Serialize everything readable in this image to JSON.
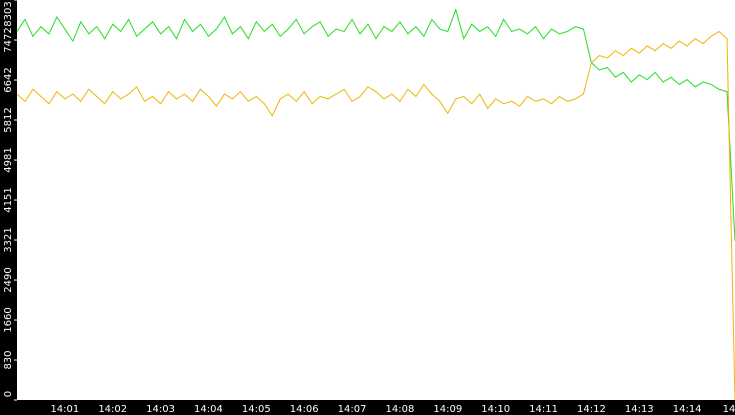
{
  "chart_data": {
    "type": "line",
    "categories": [
      null,
      null,
      null,
      null,
      null,
      null,
      "14:01",
      null,
      null,
      null,
      null,
      null,
      "14:02",
      null,
      null,
      null,
      null,
      null,
      "14:03",
      null,
      null,
      null,
      null,
      null,
      "14:04",
      null,
      null,
      null,
      null,
      null,
      "14:05",
      null,
      null,
      null,
      null,
      null,
      "14:06",
      null,
      null,
      null,
      null,
      null,
      "14:07",
      null,
      null,
      null,
      null,
      null,
      "14:08",
      null,
      null,
      null,
      null,
      null,
      "14:09",
      null,
      null,
      null,
      null,
      null,
      "14:10",
      null,
      null,
      null,
      null,
      null,
      "14:11",
      null,
      null,
      null,
      null,
      null,
      "14:12",
      null,
      null,
      null,
      null,
      null,
      "14:13",
      null,
      null,
      null,
      null,
      null,
      "14:14",
      null,
      null,
      null,
      null,
      null,
      "14"
    ],
    "series": [
      {
        "color": "#22dd22",
        "values": [
          7650,
          7900,
          7550,
          7750,
          7600,
          7950,
          7700,
          7450,
          7850,
          7600,
          7750,
          7500,
          7800,
          7650,
          7900,
          7550,
          7700,
          7850,
          7600,
          7750,
          7500,
          7900,
          7650,
          7800,
          7550,
          7700,
          7950,
          7600,
          7750,
          7500,
          7850,
          7650,
          7800,
          7550,
          7700,
          7900,
          7600,
          7750,
          7850,
          7550,
          7700,
          7650,
          7900,
          7600,
          7800,
          7500,
          7750,
          7650,
          7850,
          7600,
          7750,
          7550,
          7900,
          7700,
          7650,
          8100,
          7500,
          7800,
          7650,
          7750,
          7550,
          7900,
          7650,
          7700,
          7600,
          7750,
          7500,
          7700,
          7600,
          7650,
          7750,
          7700,
          7000,
          6850,
          6900,
          6700,
          6800,
          6600,
          6750,
          6650,
          6800,
          6600,
          6700,
          6550,
          6650,
          6500,
          6600,
          6550,
          6450,
          6400,
          3300
        ]
      },
      {
        "color": "#f0b400",
        "values": [
          6350,
          6200,
          6450,
          6300,
          6150,
          6400,
          6250,
          6350,
          6200,
          6450,
          6300,
          6150,
          6400,
          6250,
          6350,
          6500,
          6200,
          6300,
          6150,
          6400,
          6250,
          6350,
          6200,
          6450,
          6300,
          6100,
          6350,
          6250,
          6400,
          6200,
          6300,
          6150,
          5900,
          6250,
          6350,
          6200,
          6400,
          6150,
          6300,
          6250,
          6350,
          6450,
          6200,
          6300,
          6500,
          6400,
          6250,
          6350,
          6200,
          6450,
          6300,
          6550,
          6350,
          6200,
          5950,
          6250,
          6300,
          6150,
          6350,
          6050,
          6250,
          6150,
          6200,
          6100,
          6300,
          6200,
          6250,
          6150,
          6300,
          6200,
          6250,
          6350,
          7000,
          7150,
          7100,
          7250,
          7150,
          7300,
          7200,
          7350,
          7250,
          7400,
          7300,
          7450,
          7350,
          7500,
          7400,
          7550,
          7650,
          7500,
          0
        ]
      }
    ],
    "ylim": [
      0,
      8303
    ],
    "yticks": [
      0,
      830,
      1660,
      2490,
      3321,
      4151,
      4981,
      5812,
      6642,
      7472,
      8303
    ]
  }
}
